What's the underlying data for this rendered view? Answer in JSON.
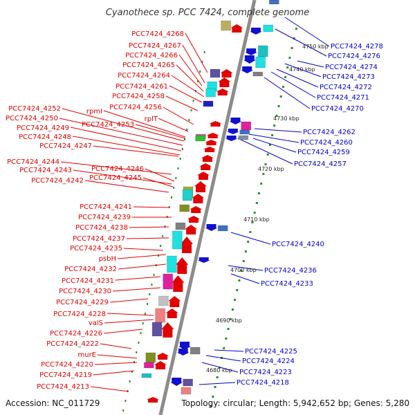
{
  "title": "Cyanothece sp. PCC 7424, complete genome",
  "footer": {
    "accession": "Accession: NC_011729",
    "summary": "Topology: circular; Length: 5,942,652 bp; Genes: 5,280"
  },
  "colors": {
    "forward_label": "#e00000",
    "reverse_label": "#0000cc",
    "backbone": "#8c8c8c",
    "tick": "#2e8b2e"
  },
  "tick_labels": [
    {
      "id": "t4750",
      "text": "4750 kbp"
    },
    {
      "id": "t4740",
      "text": "4740 kbp"
    },
    {
      "id": "t4730",
      "text": "4730 kbp"
    },
    {
      "id": "t4720",
      "text": "4720 kbp"
    },
    {
      "id": "t4710",
      "text": "4710 kbp"
    },
    {
      "id": "t4700",
      "text": "4700 kbp"
    },
    {
      "id": "t4690",
      "text": "4690 kbp"
    },
    {
      "id": "t4680",
      "text": "4680 kbp"
    }
  ],
  "forward_genes": [
    "PCC7424_4268",
    "PCC7424_4267",
    "PCC7424_4266",
    "PCC7424_4265",
    "PCC7424_4264",
    "PCC7424_4261",
    "PCC7424_4258",
    "PCC7424_4256",
    "rplT",
    "rpmI",
    "PCC7424_4252",
    "PCC7424_4253",
    "PCC7424_4250",
    "PCC7424_4249",
    "PCC7424_4248",
    "PCC7424_4247",
    "PCC7424_4244",
    "PCC7424_4246",
    "PCC7424_4243",
    "PCC7424_4245",
    "PCC7424_4242",
    "PCC7424_4241",
    "PCC7424_4239",
    "PCC7424_4238",
    "PCC7424_4237",
    "PCC7424_4235",
    "psbH",
    "PCC7424_4232",
    "PCC7424_4231",
    "PCC7424_4230",
    "PCC7424_4229",
    "PCC7424_4228",
    "valS",
    "PCC7424_4226",
    "PCC7424_4222",
    "murE",
    "PCC7424_4220",
    "PCC7424_4219",
    "PCC7424_4213"
  ],
  "reverse_genes": [
    "PCC7424_4278",
    "PCC7424_4276",
    "PCC7424_4274",
    "PCC7424_4273",
    "PCC7424_4272",
    "PCC7424_4271",
    "PCC7424_4270",
    "PCC7424_4262",
    "PCC7424_4260",
    "PCC7424_4259",
    "PCC7424_4257",
    "PCC7424_4240",
    "PCC7424_4236",
    "PCC7424_4233",
    "PCC7424_4225",
    "PCC7424_4224",
    "PCC7424_4223",
    "PCC7424_4218"
  ]
}
